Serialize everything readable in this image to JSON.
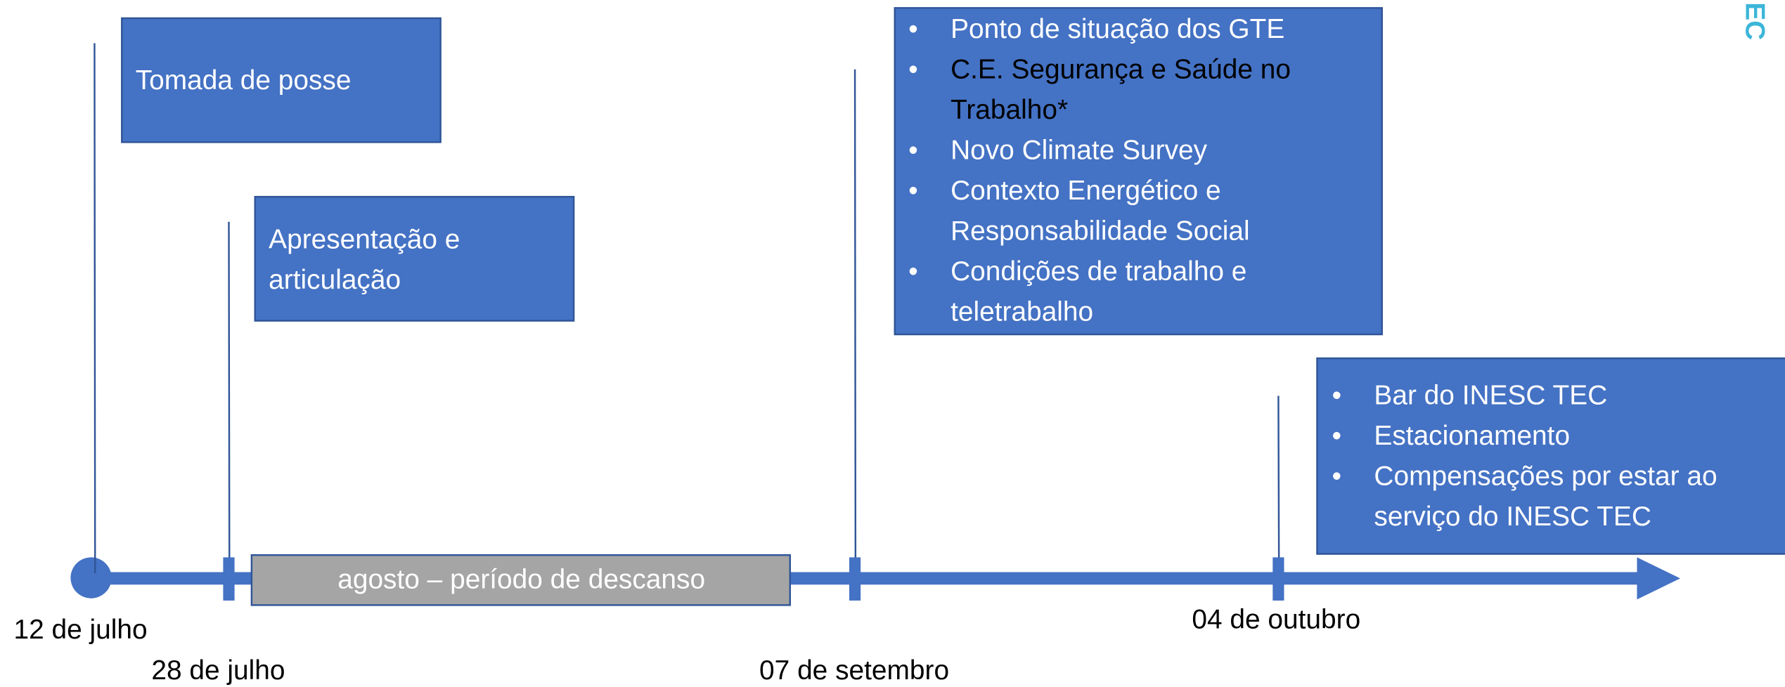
{
  "logo": "EC",
  "events": [
    {
      "date": "12 de julho",
      "box": {
        "items": [
          [
            "Tomada de posse"
          ]
        ]
      }
    },
    {
      "date": "28 de julho",
      "box": {
        "items": [
          [
            "Apresentação e",
            "articulação"
          ]
        ]
      }
    },
    {
      "date": "07 de setembro",
      "box": {
        "items": [
          [
            "Ponto de situação dos GTE"
          ],
          [
            "C.E. Segurança e Saúde no",
            "Trabalho*"
          ],
          [
            "Novo Climate Survey"
          ],
          [
            "Contexto Energético e",
            "Responsabilidade Social"
          ],
          [
            "Condições de trabalho e",
            "teletrabalho"
          ]
        ]
      }
    },
    {
      "date": "04 de outubro",
      "box": {
        "items": [
          [
            "Bar do INESC TEC"
          ],
          [
            "Estacionamento"
          ],
          [
            "Compensações por estar ao",
            "serviço do INESC TEC"
          ]
        ]
      }
    }
  ],
  "break": "agosto – período de descanso"
}
